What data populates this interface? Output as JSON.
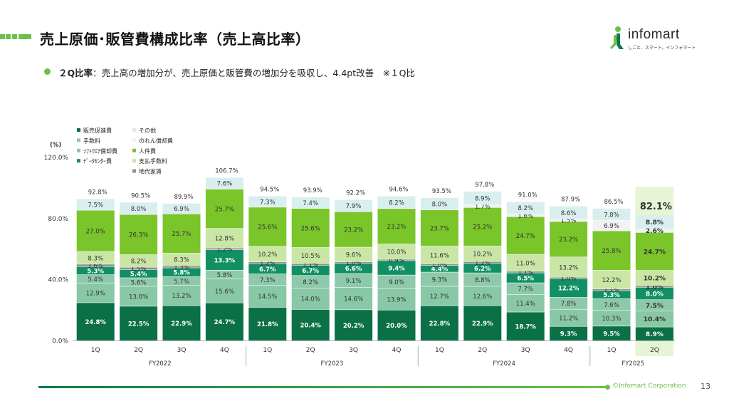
{
  "title": "売上原価･販管費構成比率（売上高比率）",
  "logo": {
    "name": "infomart",
    "tagline": "しごと、スマート。インフォマート"
  },
  "bullet": {
    "label": "２Q比率",
    "text": "：売上高の増加分が、売上原価と販管費の増加分を吸収し、4.4pt改善　※１Q比"
  },
  "footer": {
    "copyright": "©Infomart Corporation",
    "page": "13"
  },
  "colors": {
    "販売促進費": "#0b7046",
    "手数料": "#8dc9aa",
    "ソフトウエア償却費": "#88c8a6",
    "データセンター費": "#129064",
    "その他": "#d9eeee",
    "のれん償却費": "#f2f2f2",
    "人件費": "#7ac52a",
    "支払手数料": "#c9e6a4",
    "地代家賃": "#919191",
    "highlight": "#e6f5d5",
    "axis": "#999999"
  },
  "chart_data": {
    "type": "bar",
    "stacked": true,
    "ylabel": "(%)",
    "ylim": [
      0,
      120
    ],
    "yticks": [
      "0.0%",
      "40.0%",
      "80.0%",
      "120.0%"
    ],
    "categories": [
      "1Q",
      "2Q",
      "3Q",
      "4Q",
      "1Q",
      "2Q",
      "3Q",
      "4Q",
      "1Q",
      "2Q",
      "3Q",
      "4Q",
      "1Q",
      "2Q"
    ],
    "groups": [
      {
        "label": "FY2022",
        "span": 4
      },
      {
        "label": "FY2023",
        "span": 4
      },
      {
        "label": "FY2024",
        "span": 4
      },
      {
        "label": "FY2025",
        "span": 2
      }
    ],
    "legend": [
      [
        "販売促進費",
        "その他"
      ],
      [
        "手数料",
        "のれん償却費"
      ],
      [
        "ｿﾌﾄｳｴｱ償却費",
        "人件費"
      ],
      [
        "ﾃﾞｰﾀｾﾝﾀｰ費",
        "支払手数料"
      ],
      [
        "",
        "地代家賃"
      ]
    ],
    "totals": [
      "92.8%",
      "90.5%",
      "89.9%",
      "106.7%",
      "94.5%",
      "93.9%",
      "92.2%",
      "94.6%",
      "93.5%",
      "97.8%",
      "91.0%",
      "87.9%",
      "86.5%",
      "82.1%"
    ],
    "highlight_index": 13,
    "bars": [
      [
        {
          "k": "販売促進費",
          "v": 24.8,
          "t": "24.8%"
        },
        {
          "k": "ソフトウエア償却費",
          "v": 12.9,
          "t": "12.9%"
        },
        {
          "k": "手数料",
          "v": 5.4,
          "t": "5.4%"
        },
        {
          "k": "データセンター費",
          "v": 5.3,
          "t": "5.3%"
        },
        {
          "k": "地代家賃",
          "v": 1.6,
          "t": "1.6%"
        },
        {
          "k": "支払手数料",
          "v": 8.3,
          "t": "8.3%"
        },
        {
          "k": "人件費",
          "v": 27.0,
          "t": "27.0%"
        },
        {
          "k": "その他",
          "v": 7.5,
          "t": "7.5%"
        }
      ],
      [
        {
          "k": "販売促進費",
          "v": 22.5,
          "t": "22.5%"
        },
        {
          "k": "ソフトウエア償却費",
          "v": 13.0,
          "t": "13.0%"
        },
        {
          "k": "手数料",
          "v": 5.6,
          "t": "5.6%"
        },
        {
          "k": "データセンター費",
          "v": 5.4,
          "t": "5.4%"
        },
        {
          "k": "地代家賃",
          "v": 1.5,
          "t": "1.5%"
        },
        {
          "k": "支払手数料",
          "v": 8.2,
          "t": "8.2%"
        },
        {
          "k": "人件費",
          "v": 26.3,
          "t": "26.3%"
        },
        {
          "k": "その他",
          "v": 8.0,
          "t": "8.0%"
        }
      ],
      [
        {
          "k": "販売促進費",
          "v": 22.9,
          "t": "22.9%"
        },
        {
          "k": "ソフトウエア償却費",
          "v": 13.2,
          "t": "13.2%"
        },
        {
          "k": "手数料",
          "v": 5.7,
          "t": "5.7%"
        },
        {
          "k": "データセンター費",
          "v": 5.8,
          "t": "5.8%"
        },
        {
          "k": "地代家賃",
          "v": 1.3,
          "t": "1.3%"
        },
        {
          "k": "支払手数料",
          "v": 8.3,
          "t": "8.3%"
        },
        {
          "k": "人件費",
          "v": 25.7,
          "t": "25.7%"
        },
        {
          "k": "その他",
          "v": 6.9,
          "t": "6.9%"
        }
      ],
      [
        {
          "k": "販売促進費",
          "v": 24.7,
          "t": "24.7%"
        },
        {
          "k": "ソフトウエア償却費",
          "v": 15.6,
          "t": "15.6%"
        },
        {
          "k": "手数料",
          "v": 5.8,
          "t": "5.8%"
        },
        {
          "k": "データセンター費",
          "v": 13.3,
          "t": "13.3%"
        },
        {
          "k": "地代家賃",
          "v": 1.2,
          "t": "1.2%"
        },
        {
          "k": "支払手数料",
          "v": 12.8,
          "t": "12.8%"
        },
        {
          "k": "人件費",
          "v": 25.7,
          "t": "25.7%"
        },
        {
          "k": "その他",
          "v": 7.6,
          "t": "7.6%"
        }
      ],
      [
        {
          "k": "販売促進費",
          "v": 21.8,
          "t": "21.8%"
        },
        {
          "k": "ソフトウエア償却費",
          "v": 14.5,
          "t": "14.5%"
        },
        {
          "k": "手数料",
          "v": 7.3,
          "t": "7.3%"
        },
        {
          "k": "データセンター費",
          "v": 6.7,
          "t": "6.7%"
        },
        {
          "k": "地代家賃",
          "v": 1.2,
          "t": "1.2%"
        },
        {
          "k": "支払手数料",
          "v": 10.2,
          "t": "10.2%"
        },
        {
          "k": "人件費",
          "v": 25.6,
          "t": "25.6%"
        },
        {
          "k": "その他",
          "v": 7.3,
          "t": "7.3%"
        }
      ],
      [
        {
          "k": "販売促進費",
          "v": 20.4,
          "t": "20.4%"
        },
        {
          "k": "ソフトウエア償却費",
          "v": 14.0,
          "t": "14.0%"
        },
        {
          "k": "手数料",
          "v": 8.2,
          "t": "8.2%"
        },
        {
          "k": "データセンター費",
          "v": 6.7,
          "t": "6.7%"
        },
        {
          "k": "地代家賃",
          "v": 1.1,
          "t": "1.1%"
        },
        {
          "k": "支払手数料",
          "v": 10.5,
          "t": "10.5%"
        },
        {
          "k": "人件費",
          "v": 25.6,
          "t": "25.6%"
        },
        {
          "k": "その他",
          "v": 7.4,
          "t": "7.4%"
        }
      ],
      [
        {
          "k": "販売促進費",
          "v": 20.2,
          "t": "20.2%"
        },
        {
          "k": "ソフトウエア償却費",
          "v": 14.6,
          "t": "14.6%"
        },
        {
          "k": "手数料",
          "v": 9.1,
          "t": "9.1%"
        },
        {
          "k": "データセンター費",
          "v": 6.6,
          "t": "6.6%"
        },
        {
          "k": "地代家賃",
          "v": 1.0,
          "t": "1.0%"
        },
        {
          "k": "支払手数料",
          "v": 9.6,
          "t": "9.6%"
        },
        {
          "k": "人件費",
          "v": 23.2,
          "t": "23.2%"
        },
        {
          "k": "その他",
          "v": 7.9,
          "t": "7.9%"
        }
      ],
      [
        {
          "k": "販売促進費",
          "v": 20.0,
          "t": "20.0%"
        },
        {
          "k": "ソフトウエア償却費",
          "v": 13.9,
          "t": "13.9%"
        },
        {
          "k": "手数料",
          "v": 9.0,
          "t": "9.0%"
        },
        {
          "k": "データセンター費",
          "v": 9.4,
          "t": "9.4%"
        },
        {
          "k": "地代家賃",
          "v": 0.9,
          "t": "0.9%"
        },
        {
          "k": "支払手数料",
          "v": 10.0,
          "t": "10.0%"
        },
        {
          "k": "人件費",
          "v": 23.2,
          "t": "23.2%"
        },
        {
          "k": "その他",
          "v": 8.2,
          "t": "8.2%"
        }
      ],
      [
        {
          "k": "販売促進費",
          "v": 22.8,
          "t": "22.8%"
        },
        {
          "k": "ソフトウエア償却費",
          "v": 12.7,
          "t": "12.7%"
        },
        {
          "k": "手数料",
          "v": 9.3,
          "t": "9.3%"
        },
        {
          "k": "データセンター費",
          "v": 4.4,
          "t": "4.4%"
        },
        {
          "k": "地代家賃",
          "v": 1.0,
          "t": "1.0%"
        },
        {
          "k": "支払手数料",
          "v": 11.6,
          "t": "11.6%"
        },
        {
          "k": "人件費",
          "v": 23.7,
          "t": "23.7%"
        },
        {
          "k": "その他",
          "v": 8.0,
          "t": "8.0%"
        }
      ],
      [
        {
          "k": "販売促進費",
          "v": 22.9,
          "t": "22.9%"
        },
        {
          "k": "ソフトウエア償却費",
          "v": 12.6,
          "t": "12.6%"
        },
        {
          "k": "手数料",
          "v": 8.8,
          "t": "8.8%"
        },
        {
          "k": "データセンター費",
          "v": 6.2,
          "t": "6.2%"
        },
        {
          "k": "地代家賃",
          "v": 1.2,
          "t": "1.2%"
        },
        {
          "k": "支払手数料",
          "v": 10.2,
          "t": "10.2%"
        },
        {
          "k": "人件費",
          "v": 25.2,
          "t": "25.2%"
        },
        {
          "k": "のれん償却費",
          "v": 1.7,
          "t": "1.7%"
        },
        {
          "k": "その他",
          "v": 8.9,
          "t": "8.9%"
        }
      ],
      [
        {
          "k": "販売促進費",
          "v": 18.7,
          "t": "18.7%"
        },
        {
          "k": "ソフトウエア償却費",
          "v": 11.4,
          "t": "11.4%"
        },
        {
          "k": "手数料",
          "v": 7.7,
          "t": "7.7%"
        },
        {
          "k": "データセンター費",
          "v": 6.5,
          "t": "6.5%"
        },
        {
          "k": "地代家賃",
          "v": 1.1,
          "t": "1.1%"
        },
        {
          "k": "支払手数料",
          "v": 11.0,
          "t": "11.0%"
        },
        {
          "k": "人件費",
          "v": 24.7,
          "t": "24.7%"
        },
        {
          "k": "のれん償却費",
          "v": 1.6,
          "t": "1.6%"
        },
        {
          "k": "その他",
          "v": 8.2,
          "t": "8.2%"
        }
      ],
      [
        {
          "k": "販売促進費",
          "v": 9.3,
          "t": "9.3%"
        },
        {
          "k": "ソフトウエア償却費",
          "v": 11.2,
          "t": "11.2%"
        },
        {
          "k": "手数料",
          "v": 7.8,
          "t": "7.8%"
        },
        {
          "k": "データセンター費",
          "v": 12.2,
          "t": "12.2%"
        },
        {
          "k": "地代家賃",
          "v": 1.0,
          "t": "1.0%"
        },
        {
          "k": "支払手数料",
          "v": 13.2,
          "t": "13.2%"
        },
        {
          "k": "人件費",
          "v": 23.2,
          "t": "23.2%"
        },
        {
          "k": "のれん償却費",
          "v": 1.5,
          "t": "1.5%"
        },
        {
          "k": "その他",
          "v": 8.6,
          "t": "8.6%"
        }
      ],
      [
        {
          "k": "販売促進費",
          "v": 9.5,
          "t": "9.5%"
        },
        {
          "k": "ソフトウエア償却費",
          "v": 10.3,
          "t": "10.3%"
        },
        {
          "k": "手数料",
          "v": 7.6,
          "t": "7.6%"
        },
        {
          "k": "データセンター費",
          "v": 5.3,
          "t": "5.3%"
        },
        {
          "k": "地代家賃",
          "v": 1.1,
          "t": "1.1%"
        },
        {
          "k": "支払手数料",
          "v": 12.2,
          "t": "12.2%"
        },
        {
          "k": "人件費",
          "v": 25.8,
          "t": "25.8%"
        },
        {
          "k": "のれん償却費",
          "v": 6.9,
          "t": "6.9%"
        },
        {
          "k": "その他",
          "v": 7.8,
          "t": "7.8%"
        }
      ],
      [
        {
          "k": "販売促進費",
          "v": 8.9,
          "t": "8.9%"
        },
        {
          "k": "ソフトウエア償却費",
          "v": 10.4,
          "t": "10.4%"
        },
        {
          "k": "手数料",
          "v": 7.5,
          "t": "7.5%"
        },
        {
          "k": "データセンター費",
          "v": 8.0,
          "t": "8.0%"
        },
        {
          "k": "地代家賃",
          "v": 1.0,
          "t": "1.0%"
        },
        {
          "k": "支払手数料",
          "v": 10.2,
          "t": "10.2%"
        },
        {
          "k": "人件費",
          "v": 24.7,
          "t": "24.7%"
        },
        {
          "k": "のれん償却費",
          "v": 2.6,
          "t": "2.6%"
        },
        {
          "k": "その他",
          "v": 8.8,
          "t": "8.8%"
        }
      ]
    ]
  }
}
